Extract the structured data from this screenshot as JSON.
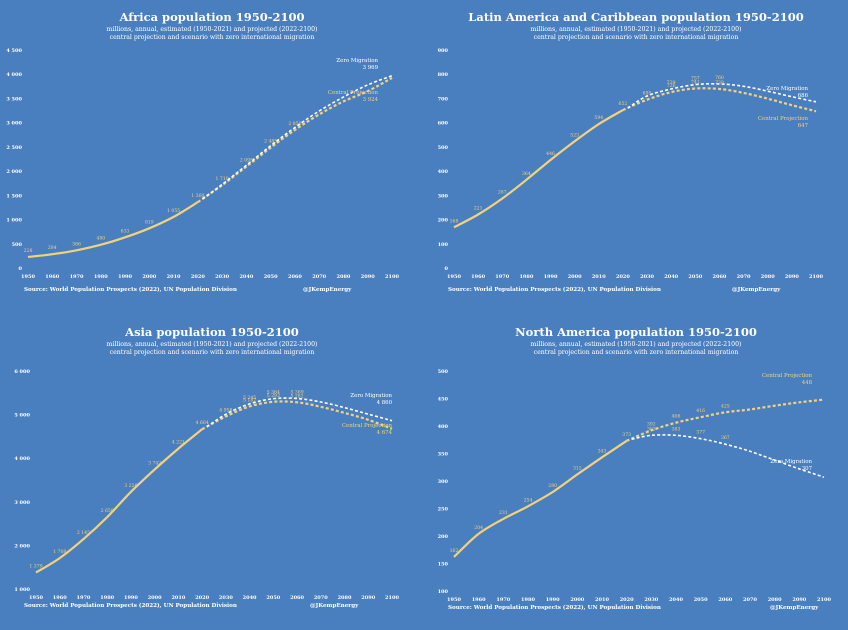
{
  "source_text": "Source: World Population Prospects (2022), UN Population Division",
  "credit": "@JKempEnergy",
  "legend": {
    "zero": "Zero Migration",
    "central": "Central Projection"
  },
  "colors": {
    "background": "#4a7fbf",
    "central": "#f3d27a",
    "zero": "#ffffff"
  },
  "chart_data": [
    {
      "type": "line",
      "title": "Africa population 1950-2100",
      "subtitle_1": "millions, annual, estimated (1950-2021) and projected (2022-2100)",
      "subtitle_2": "central projection and scenario with zero international migration",
      "xlim": [
        1950,
        2100
      ],
      "ylim": [
        0,
        4500
      ],
      "yticks": [
        "0",
        "500",
        "1 000",
        "1 500",
        "2 000",
        "2 500",
        "3 000",
        "3 500",
        "4 000",
        "4 500"
      ],
      "xticks": [
        "1950",
        "1960",
        "1970",
        "1980",
        "1990",
        "2000",
        "2010",
        "2020",
        "2030",
        "2040",
        "2050",
        "2060",
        "2070",
        "2080",
        "2090",
        "2100"
      ],
      "series": [
        {
          "name": "Central Projection",
          "x": [
            1950,
            1960,
            1970,
            1980,
            1990,
            2000,
            2010,
            2020,
            2030,
            2040,
            2050,
            2060,
            2070,
            2080,
            2090,
            2100
          ],
          "y": [
            228,
            284,
            366,
            480,
            633,
            819,
            1055,
            1360,
            1710,
            2095,
            2485,
            2850,
            3170,
            3440,
            3650,
            3924
          ]
        },
        {
          "name": "Zero Migration",
          "x": [
            2022,
            2030,
            2040,
            2050,
            2060,
            2070,
            2080,
            2090,
            2100
          ],
          "y": [
            1430,
            1725,
            2120,
            2525,
            2900,
            3240,
            3530,
            3780,
            3969
          ]
        }
      ],
      "point_labels": [
        {
          "x": 1950,
          "y": 228,
          "label": "228"
        },
        {
          "x": 1960,
          "y": 284,
          "label": "284"
        },
        {
          "x": 1970,
          "y": 366,
          "label": "366"
        },
        {
          "x": 1980,
          "y": 480,
          "label": "480"
        },
        {
          "x": 1990,
          "y": 633,
          "label": "633"
        },
        {
          "x": 2000,
          "y": 819,
          "label": "819"
        },
        {
          "x": 2010,
          "y": 1055,
          "label": "1 055"
        },
        {
          "x": 2020,
          "y": 1360,
          "label": "1 360"
        },
        {
          "x": 2030,
          "y": 1710,
          "label": "1 710"
        },
        {
          "x": 2040,
          "y": 2095,
          "label": "2 095"
        },
        {
          "x": 2050,
          "y": 2485,
          "label": "2 485"
        },
        {
          "x": 2060,
          "y": 2850,
          "label": "2 850"
        }
      ],
      "end_labels": {
        "zero": "3 969",
        "central": "3 924"
      }
    },
    {
      "type": "line",
      "title": "Latin America and Caribbean population 1950-2100",
      "subtitle_1": "millions, annual, estimated (1950-2021) and projected (2022-2100)",
      "subtitle_2": "central projection and scenario with zero international migration",
      "xlim": [
        1950,
        2100
      ],
      "ylim": [
        0,
        900
      ],
      "yticks": [
        "0",
        "100",
        "200",
        "300",
        "400",
        "500",
        "600",
        "700",
        "800",
        "900"
      ],
      "xticks": [
        "1950",
        "1960",
        "1970",
        "1980",
        "1990",
        "2000",
        "2010",
        "2020",
        "2030",
        "2040",
        "2050",
        "2060",
        "2070",
        "2080",
        "2090",
        "2100"
      ],
      "series": [
        {
          "name": "Central Projection",
          "x": [
            1950,
            1960,
            1970,
            1980,
            1990,
            2000,
            2010,
            2020,
            2030,
            2040,
            2050,
            2060,
            2070,
            2080,
            2090,
            2100
          ],
          "y": [
            168,
            221,
            287,
            364,
            446,
            523,
            594,
            652,
            695,
            726,
            741,
            739,
            723,
            699,
            672,
            647
          ]
        },
        {
          "name": "Zero Migration",
          "x": [
            2022,
            2030,
            2040,
            2050,
            2060,
            2070,
            2080,
            2090,
            2100
          ],
          "y": [
            660,
            710,
            739,
            757,
            760,
            750,
            730,
            707,
            686
          ]
        }
      ],
      "point_labels": [
        {
          "x": 1950,
          "y": 168,
          "label": "168"
        },
        {
          "x": 1960,
          "y": 221,
          "label": "221"
        },
        {
          "x": 1970,
          "y": 287,
          "label": "287"
        },
        {
          "x": 1980,
          "y": 364,
          "label": "364"
        },
        {
          "x": 1990,
          "y": 446,
          "label": "446"
        },
        {
          "x": 2000,
          "y": 523,
          "label": "523"
        },
        {
          "x": 2010,
          "y": 594,
          "label": "594"
        },
        {
          "x": 2020,
          "y": 652,
          "label": "652"
        },
        {
          "x": 2030,
          "y": 695,
          "label": "695"
        },
        {
          "x": 2040,
          "y": 726,
          "label": "726"
        },
        {
          "x": 2050,
          "y": 741,
          "label": "741"
        },
        {
          "x": 2060,
          "y": 739,
          "label": "739"
        },
        {
          "x": 2040,
          "y": 739,
          "label": "739"
        },
        {
          "x": 2050,
          "y": 757,
          "label": "757"
        },
        {
          "x": 2060,
          "y": 760,
          "label": "760"
        }
      ],
      "end_labels": {
        "zero": "686",
        "central": "647"
      }
    },
    {
      "type": "line",
      "title": "Asia population 1950-2100",
      "subtitle_1": "millions, annual, estimated (1950-2021) and projected (2022-2100)",
      "subtitle_2": "central projection and scenario with zero international migration",
      "xlim": [
        1950,
        2100
      ],
      "ylim": [
        1000,
        6000
      ],
      "yticks": [
        "1 000",
        "2 000",
        "3 000",
        "4 000",
        "5 000",
        "6 000"
      ],
      "xticks": [
        "1950",
        "1960",
        "1970",
        "1980",
        "1990",
        "2000",
        "2010",
        "2020",
        "2030",
        "2040",
        "2050",
        "2060",
        "2070",
        "2080",
        "2090",
        "2100"
      ],
      "series": [
        {
          "name": "Central Projection",
          "x": [
            1950,
            1960,
            1970,
            1980,
            1990,
            2000,
            2010,
            2020,
            2030,
            2040,
            2050,
            2060,
            2070,
            2080,
            2090,
            2100
          ],
          "y": [
            1379,
            1708,
            2145,
            2650,
            3226,
            3742,
            4221,
            4664,
            4958,
            5187,
            5293,
            5282,
            5180,
            5040,
            4880,
            4674
          ]
        },
        {
          "name": "Zero Migration",
          "x": [
            2022,
            2030,
            2040,
            2050,
            2060,
            2070,
            2080,
            2090,
            2100
          ],
          "y": [
            4720,
            5010,
            5245,
            5364,
            5369,
            5290,
            5160,
            5010,
            4860
          ]
        }
      ],
      "point_labels": [
        {
          "x": 1950,
          "y": 1379,
          "label": "1 379"
        },
        {
          "x": 1960,
          "y": 1708,
          "label": "1 708"
        },
        {
          "x": 1970,
          "y": 2145,
          "label": "2 145"
        },
        {
          "x": 1980,
          "y": 2650,
          "label": "2 650"
        },
        {
          "x": 1990,
          "y": 3226,
          "label": "3 226"
        },
        {
          "x": 2000,
          "y": 3742,
          "label": "3 742"
        },
        {
          "x": 2010,
          "y": 4221,
          "label": "4 221"
        },
        {
          "x": 2020,
          "y": 4664,
          "label": "4 664"
        },
        {
          "x": 2030,
          "y": 4958,
          "label": "4 958"
        },
        {
          "x": 2040,
          "y": 5187,
          "label": "5 187"
        },
        {
          "x": 2050,
          "y": 5293,
          "label": "5 293"
        },
        {
          "x": 2060,
          "y": 5282,
          "label": "5 282"
        },
        {
          "x": 2040,
          "y": 5245,
          "label": "5 245"
        },
        {
          "x": 2050,
          "y": 5364,
          "label": "5 364"
        },
        {
          "x": 2060,
          "y": 5369,
          "label": "5 369"
        }
      ],
      "end_labels": {
        "zero": "4 860",
        "central": "4 674"
      }
    },
    {
      "type": "line",
      "title": "North America population 1950-2100",
      "subtitle_1": "millions, annual, estimated (1950-2021) and projected (2022-2100)",
      "subtitle_2": "central projection and scenario with zero international migration",
      "xlim": [
        1950,
        2100
      ],
      "ylim": [
        100,
        500
      ],
      "yticks": [
        "100",
        "150",
        "200",
        "250",
        "300",
        "350",
        "400",
        "450",
        "500"
      ],
      "xticks": [
        "1950",
        "1960",
        "1970",
        "1980",
        "1990",
        "2000",
        "2010",
        "2020",
        "2030",
        "2040",
        "2050",
        "2060",
        "2070",
        "2080",
        "2090",
        "2100"
      ],
      "series": [
        {
          "name": "Central Projection",
          "x": [
            1950,
            1960,
            1970,
            1980,
            1990,
            2000,
            2010,
            2020,
            2030,
            2040,
            2050,
            2060,
            2070,
            2080,
            2090,
            2100
          ],
          "y": [
            162,
            204,
            231,
            254,
            280,
            312,
            343,
            373,
            392,
            406,
            416,
            425,
            430,
            437,
            443,
            448
          ]
        },
        {
          "name": "Zero Migration",
          "x": [
            2022,
            2030,
            2040,
            2050,
            2060,
            2070,
            2080,
            2090,
            2100
          ],
          "y": [
            376,
            383,
            383,
            377,
            367,
            354,
            338,
            322,
            307
          ]
        }
      ],
      "point_labels": [
        {
          "x": 1950,
          "y": 162,
          "label": "162"
        },
        {
          "x": 1960,
          "y": 204,
          "label": "204"
        },
        {
          "x": 1970,
          "y": 231,
          "label": "231"
        },
        {
          "x": 1980,
          "y": 254,
          "label": "254"
        },
        {
          "x": 1990,
          "y": 280,
          "label": "280"
        },
        {
          "x": 2000,
          "y": 312,
          "label": "312"
        },
        {
          "x": 2010,
          "y": 343,
          "label": "343"
        },
        {
          "x": 2020,
          "y": 373,
          "label": "373"
        },
        {
          "x": 2030,
          "y": 392,
          "label": "392"
        },
        {
          "x": 2040,
          "y": 406,
          "label": "406"
        },
        {
          "x": 2050,
          "y": 416,
          "label": "416"
        },
        {
          "x": 2060,
          "y": 425,
          "label": "425"
        },
        {
          "x": 2030,
          "y": 383,
          "label": "383"
        },
        {
          "x": 2040,
          "y": 383,
          "label": "383"
        },
        {
          "x": 2050,
          "y": 377,
          "label": "377"
        },
        {
          "x": 2060,
          "y": 367,
          "label": "367"
        }
      ],
      "end_labels": {
        "zero": "307",
        "central": "448"
      }
    }
  ]
}
